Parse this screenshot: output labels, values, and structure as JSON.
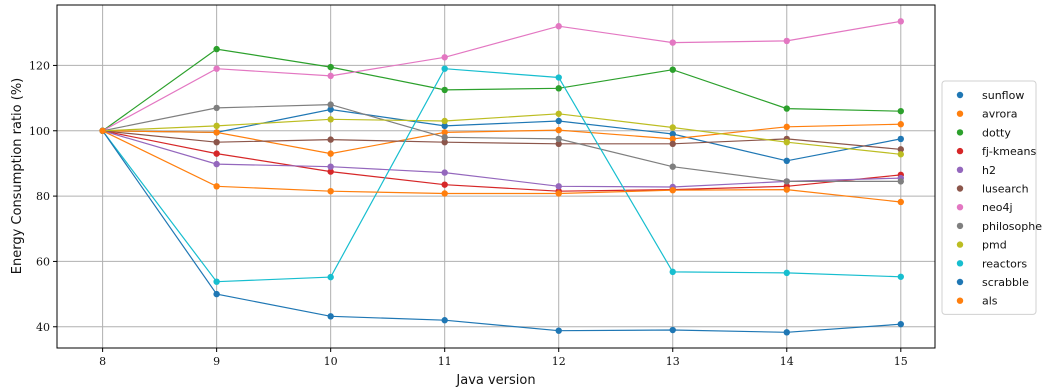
{
  "chart_data": {
    "type": "line",
    "xlabel": "Java version",
    "ylabel": "Energy Consumption ratio (%)",
    "x": [
      8,
      9,
      10,
      11,
      12,
      13,
      14,
      15
    ],
    "x_tick_labels": [
      "8",
      "9",
      "10",
      "11",
      "12",
      "13",
      "14",
      "15"
    ],
    "y_ticks": [
      40,
      60,
      80,
      100,
      120
    ],
    "y_tick_labels": [
      "40",
      "60",
      "80",
      "100",
      "120"
    ],
    "xlim": [
      7.6,
      15.3
    ],
    "ylim": [
      33.5,
      138.5
    ],
    "grid": true,
    "legend_position": "right",
    "series": [
      {
        "name": "sunflow",
        "color": "#1f77b4",
        "values": [
          100,
          99.5,
          106.5,
          101.5,
          103,
          99,
          90.8,
          97.5
        ]
      },
      {
        "name": "avrora",
        "color": "#ff7f0e",
        "values": [
          100,
          99.5,
          93,
          99.5,
          100.2,
          97.5,
          101.2,
          102
        ]
      },
      {
        "name": "dotty",
        "color": "#2ca02c",
        "values": [
          100,
          125,
          119.5,
          112.5,
          113,
          118.7,
          106.8,
          106
        ]
      },
      {
        "name": "fj-kmeans",
        "color": "#d62728",
        "values": [
          100,
          93,
          87.5,
          83.5,
          81.5,
          82,
          83,
          86.5
        ]
      },
      {
        "name": "h2",
        "color": "#9467bd",
        "values": [
          100,
          89.8,
          89,
          87.2,
          83,
          82.8,
          84.5,
          85.5
        ]
      },
      {
        "name": "lusearch",
        "color": "#8c564b",
        "values": [
          100,
          96.5,
          97.3,
          96.5,
          96,
          96,
          97.5,
          94.3
        ]
      },
      {
        "name": "neo4j",
        "color": "#e377c2",
        "values": [
          100,
          119,
          116.8,
          122.5,
          132,
          127,
          127.5,
          133.5
        ]
      },
      {
        "name": "philosopher",
        "color": "#7f7f7f",
        "values": [
          100,
          107,
          108,
          98,
          97.5,
          89,
          84.5,
          84.5
        ]
      },
      {
        "name": "pmd",
        "color": "#bcbd22",
        "values": [
          100,
          101.5,
          103.5,
          103,
          105.2,
          101,
          96.5,
          92.8
        ]
      },
      {
        "name": "reactors",
        "color": "#17becf",
        "values": [
          100,
          53.8,
          55.2,
          119,
          116.3,
          56.8,
          56.5,
          55.3
        ]
      },
      {
        "name": "scrabble",
        "color": "#1f77b4",
        "values": [
          100,
          50,
          43.2,
          42,
          38.8,
          39,
          38.3,
          40.8
        ]
      },
      {
        "name": "als",
        "color": "#ff7f0e",
        "values": [
          100,
          83,
          81.5,
          80.8,
          80.8,
          81.8,
          82,
          78.2
        ]
      }
    ]
  }
}
